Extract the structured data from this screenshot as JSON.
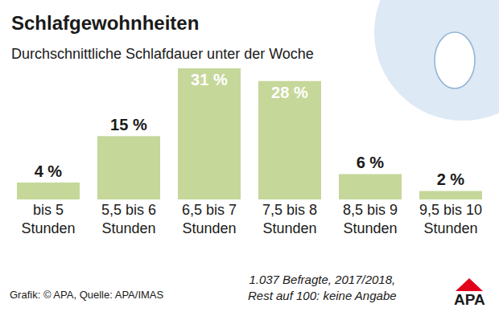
{
  "chart_data": {
    "type": "bar",
    "title": "Schlafgewohnheiten",
    "subtitle": "Durchschnittliche Schlafdauer unter der Woche",
    "categories": [
      "bis 5 Stunden",
      "5,5 bis 6 Stunden",
      "6,5 bis 7 Stunden",
      "7,5 bis 8 Stunden",
      "8,5 bis 9 Stunden",
      "9,5 bis 10 Stunden"
    ],
    "values": [
      4,
      15,
      31,
      28,
      6,
      2
    ],
    "value_labels": [
      "4 %",
      "15 %",
      "31 %",
      "28 %",
      "6 %",
      "2 %"
    ],
    "color": "#c6d79a",
    "ylim": [
      0,
      31
    ],
    "data_labels": true,
    "tick_labels": "x",
    "grid": false,
    "note": [
      "1.037 Befragte, 2017/2018,",
      "Rest auf 100: keine Angabe"
    ],
    "source": "Grafik: © APA, Quelle: APA/IMAS",
    "logo": "APA"
  }
}
